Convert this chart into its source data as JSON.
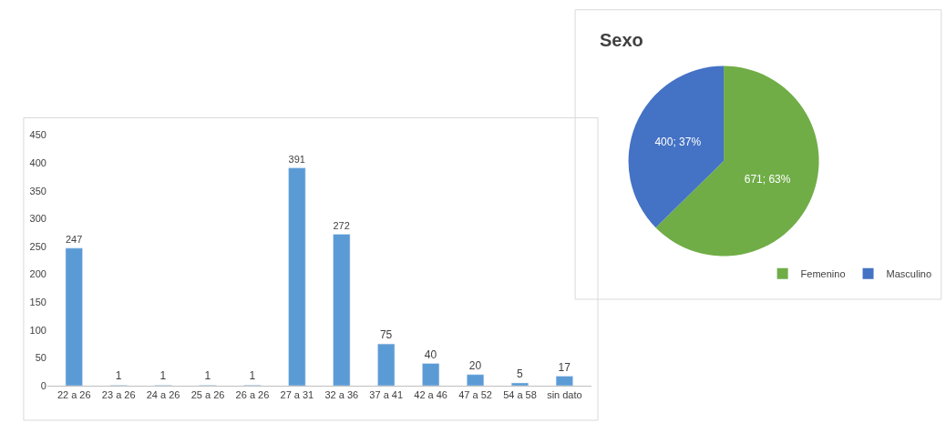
{
  "chart_data": [
    {
      "type": "bar",
      "categories": [
        "22 a 26",
        "23 a 26",
        "24 a 26",
        "25 a 26",
        "26 a 26",
        "27 a 31",
        "32 a 36",
        "37 a 41",
        "42 a 46",
        "47 a 52",
        "54 a 58",
        "sin dato"
      ],
      "values": [
        247,
        1,
        1,
        1,
        1,
        391,
        272,
        75,
        40,
        20,
        5,
        17
      ],
      "color": "#5b9bd5",
      "ylim": [
        0,
        450
      ],
      "yticks": [
        0,
        50,
        100,
        150,
        200,
        250,
        300,
        350,
        400,
        450
      ],
      "grid": false,
      "data_labels": true
    },
    {
      "type": "pie",
      "title": "Sexo",
      "categories": [
        "Femenino",
        "Masculino"
      ],
      "values": [
        671,
        400
      ],
      "colors": [
        "#70ad47",
        "#4472c4"
      ],
      "value_labels": [
        "671; 63%",
        "400; 37%"
      ],
      "legend": "bottom right"
    }
  ]
}
